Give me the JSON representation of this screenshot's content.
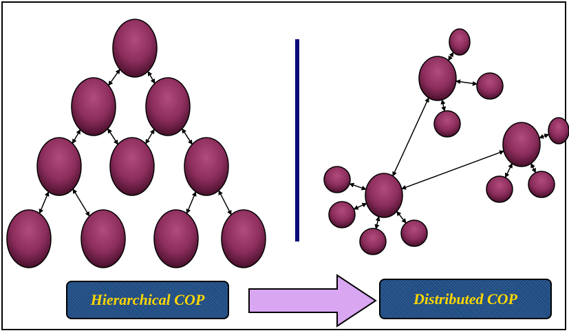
{
  "labels": {
    "left": "Hierarchical COP",
    "right": "Distributed COP"
  },
  "colors": {
    "node_fill": "#8b2d5c",
    "node_highlight": "#b24c7c",
    "node_shadow": "#3c0a22",
    "divider": "#0b0b78",
    "arrow_fill": "#d9a6f2",
    "label_box": "#20508a",
    "label_text": "#ffd700",
    "edge": "#000000"
  },
  "icons": {
    "process_arrow": "right-block-arrow-icon",
    "node": "ellipse-node-icon"
  }
}
